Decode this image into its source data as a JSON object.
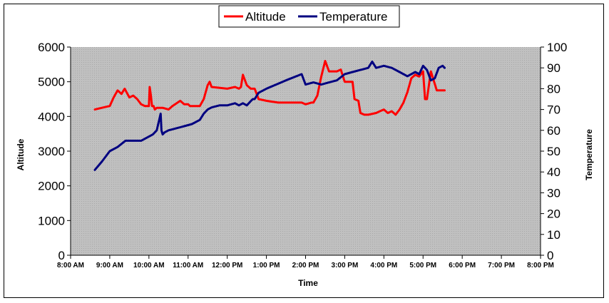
{
  "chart_data": {
    "type": "line",
    "xlabel": "Time",
    "ylabel": "Altitude",
    "y2label": "Temperature",
    "x_ticks": [
      "8:00 AM",
      "9:00 AM",
      "10:00 AM",
      "11:00 AM",
      "12:00 PM",
      "1:00 PM",
      "2:00 PM",
      "3:00 PM",
      "4:00 PM",
      "5:00 PM",
      "6:00 PM",
      "7:00 PM",
      "8:00 PM"
    ],
    "xlim": [
      8,
      20
    ],
    "ylim": [
      0,
      6000
    ],
    "y_ticks": [
      0,
      1000,
      2000,
      3000,
      4000,
      5000,
      6000
    ],
    "y2lim": [
      0,
      100
    ],
    "y2_ticks": [
      0,
      10,
      20,
      30,
      40,
      50,
      60,
      70,
      80,
      90,
      100
    ],
    "grid": false,
    "legend_position": "top-center",
    "series": [
      {
        "name": "Altitude",
        "axis": "left",
        "color": "#ff0000",
        "x": [
          8.62,
          8.8,
          9.0,
          9.1,
          9.2,
          9.3,
          9.38,
          9.5,
          9.6,
          9.7,
          9.8,
          9.9,
          10.0,
          10.02,
          10.05,
          10.08,
          10.12,
          10.15,
          10.2,
          10.35,
          10.5,
          10.6,
          10.8,
          10.9,
          11.0,
          11.05,
          11.1,
          11.3,
          11.4,
          11.5,
          11.55,
          11.6,
          12.0,
          12.2,
          12.3,
          12.35,
          12.4,
          12.5,
          12.6,
          12.7,
          12.75,
          12.8,
          13.0,
          13.3,
          13.6,
          13.9,
          14.0,
          14.15,
          14.2,
          14.3,
          14.4,
          14.5,
          14.6,
          14.8,
          14.9,
          15.0,
          15.2,
          15.25,
          15.35,
          15.4,
          15.5,
          15.6,
          15.8,
          15.9,
          16.0,
          16.1,
          16.2,
          16.3,
          16.4,
          16.5,
          16.55,
          16.6,
          16.7,
          16.8,
          16.9,
          17.0,
          17.05,
          17.1,
          17.2,
          17.35,
          17.4,
          17.5,
          17.55
        ],
        "y": [
          4200,
          4250,
          4300,
          4550,
          4750,
          4650,
          4800,
          4550,
          4600,
          4500,
          4350,
          4300,
          4300,
          4850,
          4600,
          4300,
          4300,
          4200,
          4250,
          4250,
          4200,
          4300,
          4450,
          4350,
          4350,
          4300,
          4300,
          4300,
          4500,
          4900,
          5000,
          4850,
          4800,
          4850,
          4800,
          4850,
          5200,
          4900,
          4800,
          4800,
          4650,
          4500,
          4450,
          4400,
          4400,
          4400,
          4350,
          4400,
          4400,
          4600,
          5150,
          5600,
          5300,
          5300,
          5350,
          5000,
          5000,
          4500,
          4450,
          4100,
          4050,
          4050,
          4100,
          4150,
          4200,
          4100,
          4150,
          4050,
          4200,
          4400,
          4550,
          4700,
          5100,
          5200,
          5150,
          5300,
          4500,
          4500,
          5300,
          4750,
          4750,
          4750,
          4750
        ]
      },
      {
        "name": "Temperature",
        "axis": "right",
        "color": "#000080",
        "x": [
          8.62,
          8.8,
          9.0,
          9.2,
          9.4,
          9.6,
          9.8,
          10.0,
          10.1,
          10.2,
          10.3,
          10.32,
          10.35,
          10.4,
          10.5,
          10.7,
          10.9,
          11.1,
          11.3,
          11.4,
          11.5,
          11.6,
          11.8,
          12.0,
          12.2,
          12.3,
          12.4,
          12.5,
          12.6,
          12.65,
          12.7,
          12.8,
          13.0,
          13.5,
          13.9,
          14.0,
          14.2,
          14.4,
          14.6,
          14.8,
          15.0,
          15.2,
          15.4,
          15.6,
          15.7,
          15.8,
          16.0,
          16.2,
          16.4,
          16.6,
          16.8,
          16.9,
          17.0,
          17.1,
          17.2,
          17.3,
          17.4,
          17.5,
          17.55
        ],
        "y": [
          41,
          45,
          50,
          52,
          55,
          55,
          55,
          57,
          58,
          60,
          68,
          60,
          58,
          59,
          60,
          61,
          62,
          63,
          65,
          68,
          70,
          71,
          72,
          72,
          73,
          72,
          73,
          72,
          74,
          75,
          75,
          78,
          80,
          84,
          87,
          82,
          83,
          82,
          83,
          84,
          87,
          88,
          89,
          90,
          93,
          90,
          91,
          90,
          88,
          86,
          88,
          87,
          91,
          89,
          84,
          85,
          90,
          91,
          90
        ]
      }
    ]
  }
}
